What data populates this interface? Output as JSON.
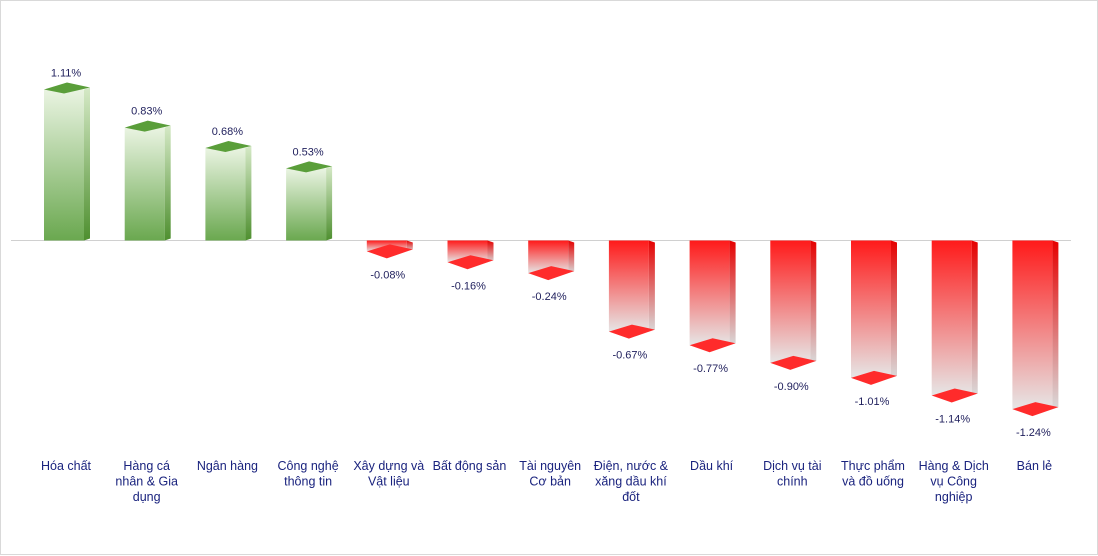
{
  "chart_data": {
    "type": "bar",
    "title": "",
    "xlabel": "",
    "ylabel": "",
    "categories": [
      "Hóa chất",
      "Hàng cá nhân & Gia dụng",
      "Ngân hàng",
      "Công nghệ thông tin",
      "Xây dựng và Vật liệu",
      "Bất động sản",
      "Tài nguyên Cơ bản",
      "Điện, nước & xăng dầu khí đốt",
      "Dầu khí",
      "Dịch vụ tài chính",
      "Thực phẩm và đồ uống",
      "Hàng & Dịch vụ Công nghiệp",
      "Bán lẻ"
    ],
    "category_lines": [
      [
        "Hóa chất"
      ],
      [
        "Hàng cá",
        "nhân & Gia",
        "dụng"
      ],
      [
        "Ngân hàng"
      ],
      [
        "Công nghệ",
        "thông tin"
      ],
      [
        "Xây dựng và",
        "Vật liệu"
      ],
      [
        "Bất động sản"
      ],
      [
        "Tài nguyên",
        "Cơ bản"
      ],
      [
        "Điện, nước &",
        "xăng dầu khí",
        "đốt"
      ],
      [
        "Dầu khí"
      ],
      [
        "Dịch vụ tài",
        "chính"
      ],
      [
        "Thực phẩm",
        "và đồ uống"
      ],
      [
        "Hàng & Dịch",
        "vụ Công",
        "nghiệp"
      ],
      [
        "Bán lẻ"
      ]
    ],
    "values": [
      1.11,
      0.83,
      0.68,
      0.53,
      -0.08,
      -0.16,
      -0.24,
      -0.67,
      -0.77,
      -0.9,
      -1.01,
      -1.14,
      -1.24
    ],
    "value_labels": [
      "1.11%",
      "0.83%",
      "0.68%",
      "0.53%",
      "-0.08%",
      "-0.16%",
      "-0.24%",
      "-0.67%",
      "-0.77%",
      "-0.90%",
      "-1.01%",
      "-1.14%",
      "-1.24%"
    ],
    "unit": "%",
    "ylim": [
      -1.24,
      1.11
    ],
    "grid": false,
    "legend": "none",
    "colors": {
      "positive": "#6aa84f",
      "positive_light": "#eaf4e2",
      "positive_top": "#5a9e3a",
      "negative": "#ff1a1a",
      "negative_light": "#e6e6e6",
      "negative_bottom": "#ff2b2b",
      "axis": "#d0d0d0",
      "label": "#1a237e"
    }
  }
}
